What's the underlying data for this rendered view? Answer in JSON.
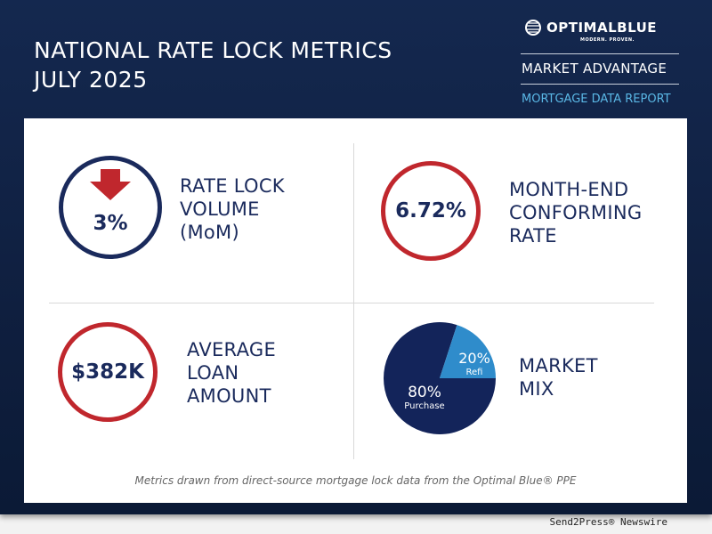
{
  "header": {
    "title_line1": "NATIONAL RATE LOCK METRICS",
    "title_line2": "JULY 2025"
  },
  "brand": {
    "logo": "OPTIMALBLUE",
    "tagline": "MODERN. PROVEN.",
    "report_series": "MARKET ADVANTAGE",
    "report_type": "MORTGAGE DATA REPORT"
  },
  "metrics": {
    "rate_lock": {
      "value": "3%",
      "direction": "down",
      "icon": "arrow-down-icon",
      "label1": "RATE LOCK",
      "label2": "VOLUME",
      "label3": "(MoM)"
    },
    "conforming_rate": {
      "value": "6.72%",
      "label1": "MONTH-END",
      "label2": "CONFORMING",
      "label3": "RATE"
    },
    "loan_amount": {
      "value": "$382K",
      "label1": "AVERAGE",
      "label2": "LOAN",
      "label3": "AMOUNT"
    },
    "market_mix": {
      "label1": "MARKET",
      "label2": "MIX"
    }
  },
  "chart_data": {
    "type": "pie",
    "title": "MARKET MIX",
    "slices": [
      {
        "name": "Purchase",
        "value": 80,
        "label": "80%",
        "color": "#13245a"
      },
      {
        "name": "Refi",
        "value": 20,
        "label": "20%",
        "color": "#2f8ccb"
      }
    ]
  },
  "footer": {
    "note": "Metrics drawn from direct-source mortgage lock data from the Optimal Blue® PPE"
  },
  "credit": "Send2Press® Newswire",
  "colors": {
    "navy": "#1a2a5c",
    "red": "#c0272d",
    "accent": "#5ab8e6"
  }
}
